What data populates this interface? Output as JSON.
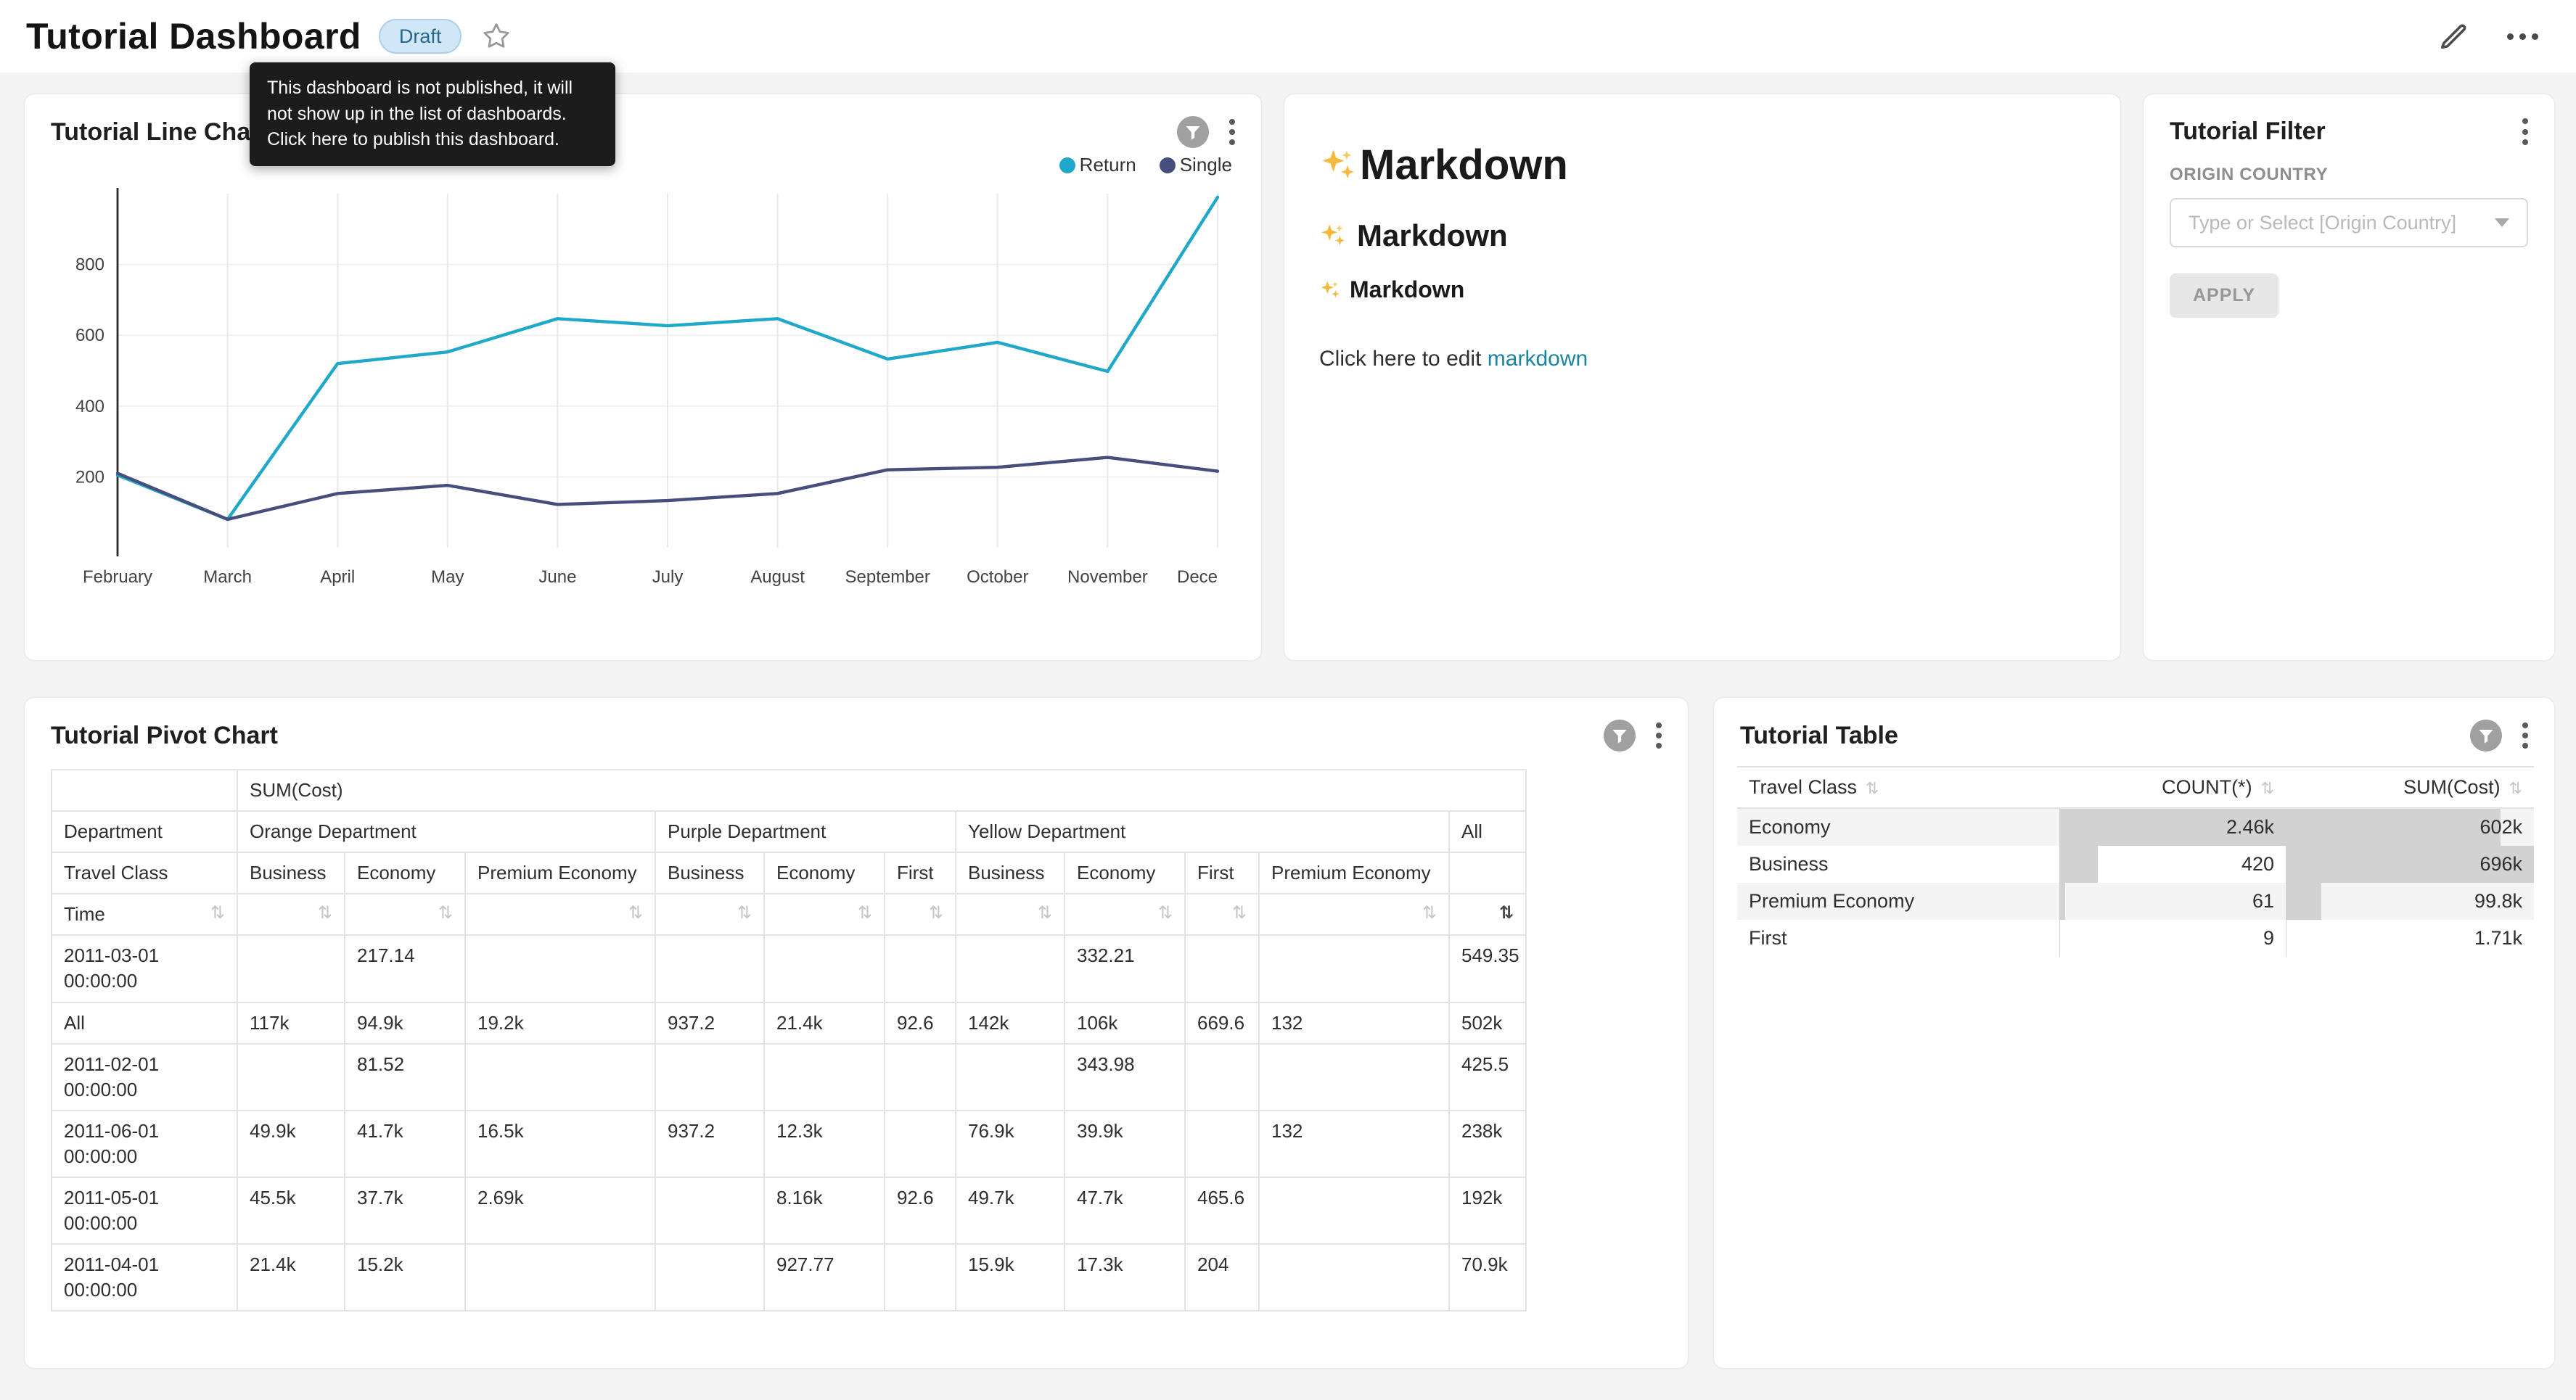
{
  "header": {
    "title": "Tutorial Dashboard",
    "badge_label": "Draft",
    "tooltip": "This dashboard is not published, it will not show up in the list of dashboards. Click here to publish this dashboard."
  },
  "icons": {
    "sort": "⇅",
    "kebab": "vertical-ellipsis",
    "filter_badge": "funnel-in-circle",
    "edit": "pencil",
    "more": "horizontal-ellipsis",
    "favorite": "star-outline"
  },
  "line_chart": {
    "title": "Tutorial Line Chart",
    "chart_data": {
      "type": "line",
      "x_labels": [
        "February",
        "March",
        "April",
        "May",
        "June",
        "July",
        "August",
        "September",
        "October",
        "November",
        "Dece"
      ],
      "series": [
        {
          "name": "Return",
          "color": "#1FA8C9",
          "values": [
            205,
            80,
            520,
            553,
            647,
            627,
            647,
            533,
            580,
            498,
            990
          ]
        },
        {
          "name": "Single",
          "color": "#454E7C",
          "values": [
            210,
            80,
            153,
            176,
            122,
            133,
            153,
            220,
            227,
            255,
            216
          ]
        }
      ],
      "ylim": [
        0,
        1000
      ],
      "yticks": [
        200,
        400,
        600,
        800
      ],
      "legend_position": "top-right",
      "grid": true
    }
  },
  "markdown": {
    "sparkle_char": "✨",
    "h1": "Markdown",
    "h2": "Markdown",
    "h3": "Markdown",
    "paragraph_prefix": "Click here to edit ",
    "link_text": "markdown"
  },
  "filter_card": {
    "title": "Tutorial Filter",
    "field_label": "ORIGIN COUNTRY",
    "select_placeholder": "Type or Select [Origin Country]",
    "apply_label": "APPLY"
  },
  "pivot": {
    "title": "Tutorial Pivot Chart",
    "metric_header": "SUM(Cost)",
    "department_label": "Department",
    "travel_class_label": "Travel Class",
    "time_label": "Time",
    "groups": [
      {
        "label": "Orange Department",
        "cols": [
          "Business",
          "Economy",
          "Premium Economy"
        ]
      },
      {
        "label": "Purple Department",
        "cols": [
          "Business",
          "Economy",
          "First"
        ]
      },
      {
        "label": "Yellow Department",
        "cols": [
          "Business",
          "Economy",
          "First",
          "Premium Economy"
        ]
      },
      {
        "label": "All",
        "cols": [
          ""
        ]
      }
    ],
    "rows": [
      {
        "label": "2011-03-01 00:00:00",
        "values": [
          "",
          "217.14",
          "",
          "",
          "",
          "",
          "",
          "332.21",
          "",
          "",
          "549.35"
        ]
      },
      {
        "label": "All",
        "values": [
          "117k",
          "94.9k",
          "19.2k",
          "937.2",
          "21.4k",
          "92.6",
          "142k",
          "106k",
          "669.6",
          "132",
          "502k"
        ]
      },
      {
        "label": "2011-02-01 00:00:00",
        "values": [
          "",
          "81.52",
          "",
          "",
          "",
          "",
          "",
          "343.98",
          "",
          "",
          "425.5"
        ]
      },
      {
        "label": "2011-06-01 00:00:00",
        "values": [
          "49.9k",
          "41.7k",
          "16.5k",
          "937.2",
          "12.3k",
          "",
          "76.9k",
          "39.9k",
          "",
          "132",
          "238k"
        ]
      },
      {
        "label": "2011-05-01 00:00:00",
        "values": [
          "45.5k",
          "37.7k",
          "2.69k",
          "",
          "8.16k",
          "92.6",
          "49.7k",
          "47.7k",
          "465.6",
          "",
          "192k"
        ]
      },
      {
        "label": "2011-04-01 00:00:00",
        "values": [
          "21.4k",
          "15.2k",
          "",
          "",
          "927.77",
          "",
          "15.9k",
          "17.3k",
          "204",
          "",
          "70.9k"
        ]
      }
    ]
  },
  "table": {
    "title": "Tutorial Table",
    "columns": [
      "Travel Class",
      "COUNT(*)",
      "SUM(Cost)"
    ],
    "rows": [
      {
        "travel_class": "Economy",
        "count": "2.46k",
        "count_value": 2460,
        "sum": "602k",
        "sum_value": 602000
      },
      {
        "travel_class": "Business",
        "count": "420",
        "count_value": 420,
        "sum": "696k",
        "sum_value": 696000
      },
      {
        "travel_class": "Premium Economy",
        "count": "61",
        "count_value": 61,
        "sum": "99.8k",
        "sum_value": 99800
      },
      {
        "travel_class": "First",
        "count": "9",
        "count_value": 9,
        "sum": "1.71k",
        "sum_value": 1710
      }
    ]
  },
  "colors": {
    "series_return": "#1FA8C9",
    "series_single": "#454E7C",
    "link": "#1985a0",
    "draft_badge_bg": "#cfe7f6",
    "draft_badge_text": "#27678f",
    "table_bar": "#d2d2d2",
    "tooltip_bg": "#1c1c1c",
    "page_bg": "#f4f4f4"
  }
}
